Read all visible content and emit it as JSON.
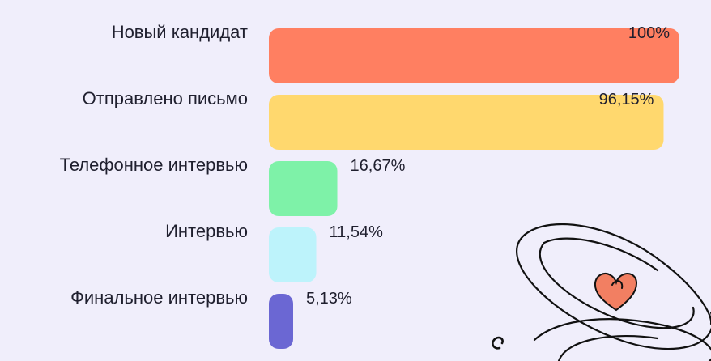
{
  "chart_data": {
    "type": "bar",
    "orientation": "horizontal",
    "categories": [
      "Новый кандидат",
      "Отправлено письмо",
      "Телефонное интервью",
      "Интервью",
      "Финальное интервью"
    ],
    "values": [
      100,
      96.15,
      16.67,
      11.54,
      5.13
    ],
    "value_labels": [
      "100%",
      "96,15%",
      "16,67%",
      "11,54%",
      "5,13%"
    ],
    "colors": [
      "#ff7f61",
      "#ffd86e",
      "#7ef2a8",
      "#bdf3fb",
      "#6b67d3"
    ],
    "xlim": [
      0,
      100
    ],
    "grid": false,
    "legend": "none"
  }
}
